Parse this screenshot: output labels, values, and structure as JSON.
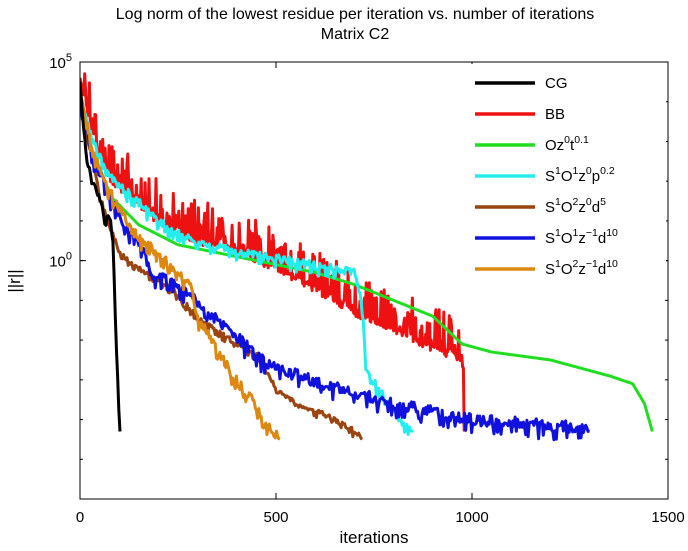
{
  "chart_data": {
    "type": "line",
    "title": "Log norm of the lowest residue per iteration vs. number of iterations",
    "subtitle": "Matrix C2",
    "xlabel": "iterations",
    "ylabel": "||r||",
    "xlim": [
      0,
      1500
    ],
    "ylim_log10": [
      -6,
      5
    ],
    "y_scale": "log",
    "grid": false,
    "legend_position": "top-right",
    "x_ticks": [
      "0",
      "500",
      "1000",
      "1500"
    ],
    "y_ticks": [
      {
        "base": "10",
        "exp": "5",
        "log10": 5
      },
      {
        "base": "10",
        "exp": "0",
        "log10": 0
      }
    ],
    "series": [
      {
        "name": "CG",
        "color": "#000000",
        "noise": 0.15,
        "points": [
          [
            0,
            4.5
          ],
          [
            10,
            3.2
          ],
          [
            20,
            2.4
          ],
          [
            30,
            2.0
          ],
          [
            40,
            1.8
          ],
          [
            50,
            1.5
          ],
          [
            58,
            1.3
          ],
          [
            65,
            0.8
          ],
          [
            72,
            1.2
          ],
          [
            80,
            0.9
          ],
          [
            85,
            0.3
          ],
          [
            90,
            -1.5
          ],
          [
            100,
            -4.0
          ],
          [
            102,
            -4.3
          ]
        ]
      },
      {
        "name": "BB",
        "color": "#ee1111",
        "noise": 1.6,
        "points": [
          [
            0,
            4.6
          ],
          [
            20,
            3.6
          ],
          [
            50,
            2.5
          ],
          [
            80,
            1.9
          ],
          [
            120,
            1.6
          ],
          [
            200,
            0.9
          ],
          [
            300,
            0.4
          ],
          [
            400,
            0.2
          ],
          [
            500,
            -0.3
          ],
          [
            600,
            -0.8
          ],
          [
            700,
            -1.4
          ],
          [
            800,
            -1.8
          ],
          [
            900,
            -2.3
          ],
          [
            960,
            -2.5
          ],
          [
            978,
            -2.7
          ],
          [
            980,
            -4.3
          ]
        ]
      },
      {
        "name": "Oz0t0.1",
        "color": "#22dd22",
        "noise": 0,
        "points": [
          [
            0,
            4.2
          ],
          [
            30,
            2.8
          ],
          [
            80,
            1.6
          ],
          [
            150,
            0.9
          ],
          [
            250,
            0.4
          ],
          [
            400,
            0.1
          ],
          [
            500,
            -0.1
          ],
          [
            600,
            -0.3
          ],
          [
            700,
            -0.6
          ],
          [
            800,
            -1.0
          ],
          [
            900,
            -1.4
          ],
          [
            975,
            -2.1
          ],
          [
            1050,
            -2.3
          ],
          [
            1200,
            -2.5
          ],
          [
            1350,
            -2.9
          ],
          [
            1410,
            -3.1
          ],
          [
            1440,
            -3.6
          ],
          [
            1460,
            -4.3
          ]
        ]
      },
      {
        "name": "S1O1z0p0.2",
        "color": "#22eeee",
        "noise": 0.25,
        "points": [
          [
            0,
            4.1
          ],
          [
            30,
            3.0
          ],
          [
            80,
            2.0
          ],
          [
            140,
            1.5
          ],
          [
            200,
            0.9
          ],
          [
            300,
            0.4
          ],
          [
            400,
            0.15
          ],
          [
            500,
            0.0
          ],
          [
            600,
            -0.2
          ],
          [
            700,
            -0.35
          ],
          [
            720,
            -1.2
          ],
          [
            730,
            -2.8
          ],
          [
            760,
            -3.3
          ],
          [
            800,
            -3.8
          ],
          [
            820,
            -4.2
          ],
          [
            850,
            -4.3
          ]
        ]
      },
      {
        "name": "S1O2z0d5",
        "color": "#994411",
        "noise": 0.15,
        "points": [
          [
            0,
            4.3
          ],
          [
            20,
            3.0
          ],
          [
            50,
            1.6
          ],
          [
            80,
            0.7
          ],
          [
            100,
            0.2
          ],
          [
            130,
            -0.1
          ],
          [
            160,
            -0.3
          ],
          [
            200,
            -0.5
          ],
          [
            250,
            -0.9
          ],
          [
            300,
            -1.5
          ],
          [
            380,
            -2.0
          ],
          [
            460,
            -2.5
          ],
          [
            500,
            -3.3
          ],
          [
            560,
            -3.7
          ],
          [
            620,
            -3.9
          ],
          [
            680,
            -4.2
          ],
          [
            720,
            -4.5
          ]
        ]
      },
      {
        "name": "S1O1z-1d10",
        "color": "#1111dd",
        "noise": 0.35,
        "points": [
          [
            0,
            4.0
          ],
          [
            30,
            2.5
          ],
          [
            70,
            1.7
          ],
          [
            100,
            1.0
          ],
          [
            150,
            0.4
          ],
          [
            180,
            -0.4
          ],
          [
            220,
            -0.5
          ],
          [
            260,
            -0.8
          ],
          [
            300,
            -1.1
          ],
          [
            350,
            -1.6
          ],
          [
            400,
            -2.0
          ],
          [
            450,
            -2.5
          ],
          [
            500,
            -2.8
          ],
          [
            560,
            -3.0
          ],
          [
            620,
            -3.2
          ],
          [
            700,
            -3.4
          ],
          [
            800,
            -3.7
          ],
          [
            900,
            -3.9
          ],
          [
            1000,
            -4.1
          ],
          [
            1100,
            -4.15
          ],
          [
            1200,
            -4.25
          ],
          [
            1300,
            -4.3
          ]
        ]
      },
      {
        "name": "S1O2z-1d10",
        "color": "#dd8811",
        "noise": 0.3,
        "points": [
          [
            0,
            4.2
          ],
          [
            20,
            3.2
          ],
          [
            50,
            2.2
          ],
          [
            100,
            1.2
          ],
          [
            140,
            0.6
          ],
          [
            200,
            0.1
          ],
          [
            240,
            -0.3
          ],
          [
            280,
            -0.7
          ],
          [
            300,
            -1.5
          ],
          [
            330,
            -2.0
          ],
          [
            350,
            -2.3
          ],
          [
            380,
            -2.8
          ],
          [
            400,
            -3.1
          ],
          [
            440,
            -3.6
          ],
          [
            480,
            -4.3
          ],
          [
            510,
            -4.5
          ]
        ]
      }
    ]
  },
  "legend": {
    "entries": [
      {
        "base": "CG"
      },
      {
        "base": "BB"
      },
      {
        "base": "Oz",
        "segments": [
          [
            "0",
            "t"
          ],
          [
            "0.1",
            ""
          ]
        ]
      },
      {
        "base": "S",
        "segments": [
          [
            "1",
            "O"
          ],
          [
            "1",
            "z"
          ],
          [
            "0",
            "p"
          ],
          [
            "0.2",
            ""
          ]
        ]
      },
      {
        "base": "S",
        "segments": [
          [
            "1",
            "O"
          ],
          [
            "2",
            "z"
          ],
          [
            "0",
            "d"
          ],
          [
            "5",
            ""
          ]
        ]
      },
      {
        "base": "S",
        "segments": [
          [
            "1",
            "O"
          ],
          [
            "1",
            "z"
          ],
          [
            "−1",
            "d"
          ],
          [
            "10",
            ""
          ]
        ]
      },
      {
        "base": "S",
        "segments": [
          [
            "1",
            "O"
          ],
          [
            "2",
            "z"
          ],
          [
            "−1",
            "d"
          ],
          [
            "10",
            ""
          ]
        ]
      }
    ]
  }
}
